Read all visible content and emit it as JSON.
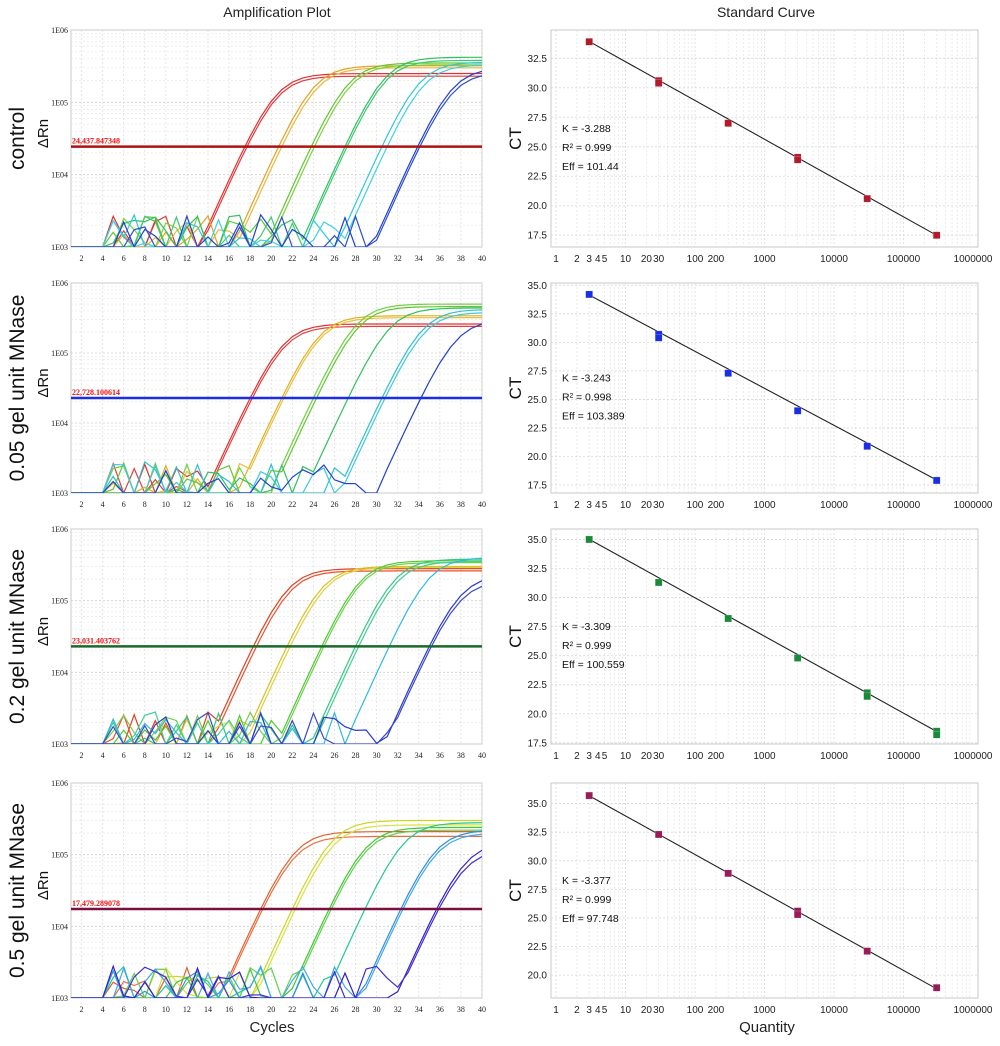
{
  "titles": {
    "left": "Amplification Plot",
    "right": "Standard Curve"
  },
  "axis_titles": {
    "amp_x": "Cycles",
    "amp_y": "ΔRn",
    "std_x": "Quantity",
    "std_y": "CT"
  },
  "chart_data": [
    {
      "type": "line",
      "title": "Amplification Plot",
      "row_label": "control",
      "xlabel": "Cycles",
      "ylabel": "ΔRn",
      "yscale": "log",
      "xlim": [
        1,
        40
      ],
      "ylim": [
        1000,
        1000000
      ],
      "x_ticks": [
        "2",
        "4",
        "6",
        "8",
        "10",
        "12",
        "14",
        "16",
        "18",
        "20",
        "22",
        "24",
        "26",
        "28",
        "30",
        "32",
        "34",
        "36",
        "38",
        "40"
      ],
      "y_ticks": [
        "1E03",
        "1E04",
        "1E05",
        "1E06"
      ],
      "threshold": {
        "value": 24437.847348,
        "label": "24,437.847348",
        "color": "#b01010"
      },
      "series": [
        {
          "color": "#e03030",
          "ct": 17.5,
          "plateau": 250000
        },
        {
          "color": "#e03a3a",
          "ct": 17.7,
          "plateau": 230000
        },
        {
          "color": "#e8a020",
          "ct": 20.7,
          "plateau": 320000
        },
        {
          "color": "#e8b840",
          "ct": 21.0,
          "plateau": 300000
        },
        {
          "color": "#60c830",
          "ct": 23.8,
          "plateau": 350000
        },
        {
          "color": "#80d040",
          "ct": 24.1,
          "plateau": 330000
        },
        {
          "color": "#30c060",
          "ct": 27.0,
          "plateau": 420000
        },
        {
          "color": "#40c870",
          "ct": 27.2,
          "plateau": 380000
        },
        {
          "color": "#30c8d8",
          "ct": 30.5,
          "plateau": 360000
        },
        {
          "color": "#40d0e0",
          "ct": 31.0,
          "plateau": 330000
        },
        {
          "color": "#2040d0",
          "ct": 33.9,
          "plateau": 300000
        },
        {
          "color": "#3050c8",
          "ct": 34.1,
          "plateau": 260000
        }
      ]
    },
    {
      "type": "scatter",
      "title": "Standard Curve",
      "xlabel": "Quantity",
      "ylabel": "CT",
      "xscale": "log",
      "xlim": [
        1,
        1000000
      ],
      "ylim": [
        16.5,
        34.9
      ],
      "x_ticks": [
        "1",
        "2",
        "3",
        "4",
        "5",
        "10",
        "20",
        "30",
        "100",
        "200",
        "1000",
        "10000",
        "100000",
        "1000000"
      ],
      "y_ticks": [
        "17.5",
        "20.0",
        "22.5",
        "25.0",
        "27.5",
        "30.0",
        "32.5"
      ],
      "marker_color": "#b01c2c",
      "points": [
        {
          "x": 3,
          "y": 33.9
        },
        {
          "x": 30,
          "y": 30.6
        },
        {
          "x": 30,
          "y": 30.4
        },
        {
          "x": 300,
          "y": 27.0
        },
        {
          "x": 3000,
          "y": 24.1
        },
        {
          "x": 3000,
          "y": 23.9
        },
        {
          "x": 30000,
          "y": 20.6
        },
        {
          "x": 300000,
          "y": 17.5
        }
      ],
      "fit": {
        "slope": -3.288,
        "intercept": 35.5
      },
      "stats": [
        "K = -3.288",
        "R² = 0.999",
        "Eff = 101.44"
      ]
    },
    {
      "type": "line",
      "title": "Amplification Plot",
      "row_label": "0.05 gel unit MNase",
      "xlabel": "Cycles",
      "ylabel": "ΔRn",
      "yscale": "log",
      "xlim": [
        1,
        40
      ],
      "ylim": [
        1000,
        1000000
      ],
      "x_ticks": [
        "2",
        "4",
        "6",
        "8",
        "10",
        "12",
        "14",
        "16",
        "18",
        "20",
        "22",
        "24",
        "26",
        "28",
        "30",
        "32",
        "34",
        "36",
        "38",
        "40"
      ],
      "y_ticks": [
        "1E03",
        "1E04",
        "1E05",
        "1E06"
      ],
      "threshold": {
        "value": 22728.100614,
        "label": "22,728.100614",
        "color": "#1a2ee8"
      },
      "series": [
        {
          "color": "#e03030",
          "ct": 18.0,
          "plateau": 260000
        },
        {
          "color": "#e04040",
          "ct": 18.2,
          "plateau": 240000
        },
        {
          "color": "#e0b020",
          "ct": 21.0,
          "plateau": 340000
        },
        {
          "color": "#e8c040",
          "ct": 21.2,
          "plateau": 320000
        },
        {
          "color": "#70d040",
          "ct": 24.0,
          "plateau": 500000
        },
        {
          "color": "#60c830",
          "ct": 24.3,
          "plateau": 460000
        },
        {
          "color": "#30c060",
          "ct": 27.3,
          "plateau": 440000
        },
        {
          "color": "#30c0d0",
          "ct": 30.5,
          "plateau": 420000
        },
        {
          "color": "#40c8e0",
          "ct": 30.8,
          "plateau": 380000
        },
        {
          "color": "#2040d0",
          "ct": 34.2,
          "plateau": 300000
        }
      ]
    },
    {
      "type": "scatter",
      "title": "Standard Curve",
      "xlabel": "Quantity",
      "ylabel": "CT",
      "xscale": "log",
      "xlim": [
        1,
        1000000
      ],
      "ylim": [
        16.8,
        35.2
      ],
      "x_ticks": [
        "1",
        "2",
        "3",
        "4",
        "5",
        "10",
        "20",
        "30",
        "100",
        "200",
        "1000",
        "10000",
        "100000",
        "1000000"
      ],
      "y_ticks": [
        "17.5",
        "20.0",
        "22.5",
        "25.0",
        "27.5",
        "30.0",
        "32.5",
        "35.0"
      ],
      "marker_color": "#1a2ee8",
      "points": [
        {
          "x": 3,
          "y": 34.2
        },
        {
          "x": 30,
          "y": 30.7
        },
        {
          "x": 30,
          "y": 30.4
        },
        {
          "x": 300,
          "y": 27.3
        },
        {
          "x": 3000,
          "y": 24.0
        },
        {
          "x": 30000,
          "y": 20.9
        },
        {
          "x": 300000,
          "y": 17.9
        }
      ],
      "fit": {
        "slope": -3.243,
        "intercept": 35.7
      },
      "stats": [
        "K = -3.243",
        "R² = 0.998",
        "Eff = 103.389"
      ]
    },
    {
      "type": "line",
      "title": "Amplification Plot",
      "row_label": "0.2 gel unit MNase",
      "xlabel": "Cycles",
      "ylabel": "ΔRn",
      "yscale": "log",
      "xlim": [
        1,
        40
      ],
      "ylim": [
        1000,
        1000000
      ],
      "x_ticks": [
        "2",
        "4",
        "6",
        "8",
        "10",
        "12",
        "14",
        "16",
        "18",
        "20",
        "22",
        "24",
        "26",
        "28",
        "30",
        "32",
        "34",
        "36",
        "38",
        "40"
      ],
      "y_ticks": [
        "1E03",
        "1E04",
        "1E05",
        "1E06"
      ],
      "threshold": {
        "value": 23031.403762,
        "label": "23,031.403762",
        "color": "#1a6a2a"
      },
      "series": [
        {
          "color": "#e04020",
          "ct": 18.3,
          "plateau": 280000
        },
        {
          "color": "#e85030",
          "ct": 18.6,
          "plateau": 260000
        },
        {
          "color": "#d8c020",
          "ct": 21.5,
          "plateau": 300000
        },
        {
          "color": "#e0d040",
          "ct": 21.8,
          "plateau": 290000
        },
        {
          "color": "#50c830",
          "ct": 24.8,
          "plateau": 360000
        },
        {
          "color": "#70d050",
          "ct": 25.0,
          "plateau": 340000
        },
        {
          "color": "#30c880",
          "ct": 28.0,
          "plateau": 380000
        },
        {
          "color": "#40d090",
          "ct": 28.3,
          "plateau": 350000
        },
        {
          "color": "#30b8e0",
          "ct": 31.2,
          "plateau": 400000
        },
        {
          "color": "#2a3ad0",
          "ct": 35.0,
          "plateau": 230000
        },
        {
          "color": "#3a48c8",
          "ct": 35.2,
          "plateau": 190000
        }
      ]
    },
    {
      "type": "scatter",
      "title": "Standard Curve",
      "xlabel": "Quantity",
      "ylabel": "CT",
      "xscale": "log",
      "xlim": [
        1,
        1000000
      ],
      "ylim": [
        17.4,
        35.9
      ],
      "x_ticks": [
        "1",
        "2",
        "3",
        "4",
        "5",
        "10",
        "20",
        "30",
        "100",
        "200",
        "1000",
        "10000",
        "100000",
        "1000000"
      ],
      "y_ticks": [
        "17.5",
        "20.0",
        "22.5",
        "25.0",
        "27.5",
        "30.0",
        "32.5",
        "35.0"
      ],
      "marker_color": "#1a8a3a",
      "points": [
        {
          "x": 3,
          "y": 35.0
        },
        {
          "x": 30,
          "y": 31.3
        },
        {
          "x": 300,
          "y": 28.2
        },
        {
          "x": 3000,
          "y": 24.8
        },
        {
          "x": 30000,
          "y": 21.8
        },
        {
          "x": 30000,
          "y": 21.5
        },
        {
          "x": 300000,
          "y": 18.5
        },
        {
          "x": 300000,
          "y": 18.2
        }
      ],
      "fit": {
        "slope": -3.309,
        "intercept": 36.6
      },
      "stats": [
        "K = -3.309",
        "R² = 0.999",
        "Eff = 100.559"
      ]
    },
    {
      "type": "line",
      "title": "Amplification Plot",
      "row_label": "0.5 gel unit MNase",
      "xlabel": "Cycles",
      "ylabel": "ΔRn",
      "yscale": "log",
      "xlim": [
        1,
        40
      ],
      "ylim": [
        1000,
        1000000
      ],
      "x_ticks": [
        "2",
        "4",
        "6",
        "8",
        "10",
        "12",
        "14",
        "16",
        "18",
        "20",
        "22",
        "24",
        "26",
        "28",
        "30",
        "32",
        "34",
        "36",
        "38",
        "40"
      ],
      "y_ticks": [
        "1E03",
        "1E04",
        "1E05",
        "1E06"
      ],
      "threshold": {
        "value": 17479.289078,
        "label": "17,479.289078",
        "color": "#7a1040"
      },
      "series": [
        {
          "color": "#e06030",
          "ct": 19.0,
          "plateau": 210000
        },
        {
          "color": "#e87040",
          "ct": 19.2,
          "plateau": 180000
        },
        {
          "color": "#c8d820",
          "ct": 22.0,
          "plateau": 300000
        },
        {
          "color": "#d8e040",
          "ct": 22.3,
          "plateau": 260000
        },
        {
          "color": "#40c830",
          "ct": 25.5,
          "plateau": 240000
        },
        {
          "color": "#60d050",
          "ct": 25.7,
          "plateau": 220000
        },
        {
          "color": "#20c890",
          "ct": 28.9,
          "plateau": 280000
        },
        {
          "color": "#3090e0",
          "ct": 32.3,
          "plateau": 220000
        },
        {
          "color": "#40a8e8",
          "ct": 32.5,
          "plateau": 200000
        },
        {
          "color": "#3020c8",
          "ct": 35.7,
          "plateau": 150000
        },
        {
          "color": "#4030d0",
          "ct": 35.9,
          "plateau": 120000
        }
      ]
    },
    {
      "type": "scatter",
      "title": "Standard Curve",
      "xlabel": "Quantity",
      "ylabel": "CT",
      "xscale": "log",
      "xlim": [
        1,
        1000000
      ],
      "ylim": [
        18.0,
        36.8
      ],
      "x_ticks": [
        "1",
        "2",
        "3",
        "4",
        "5",
        "10",
        "20",
        "30",
        "100",
        "200",
        "1000",
        "10000",
        "100000",
        "1000000"
      ],
      "y_ticks": [
        "20.0",
        "22.5",
        "25.0",
        "27.5",
        "30.0",
        "32.5",
        "35.0"
      ],
      "marker_color": "#9a1a5a",
      "points": [
        {
          "x": 3,
          "y": 35.7
        },
        {
          "x": 30,
          "y": 32.3
        },
        {
          "x": 300,
          "y": 28.9
        },
        {
          "x": 3000,
          "y": 25.6
        },
        {
          "x": 3000,
          "y": 25.3
        },
        {
          "x": 30000,
          "y": 22.1
        },
        {
          "x": 300000,
          "y": 18.9
        }
      ],
      "fit": {
        "slope": -3.377,
        "intercept": 37.3
      },
      "stats": [
        "K = -3.377",
        "R² = 0.999",
        "Eff = 97.748"
      ]
    }
  ]
}
